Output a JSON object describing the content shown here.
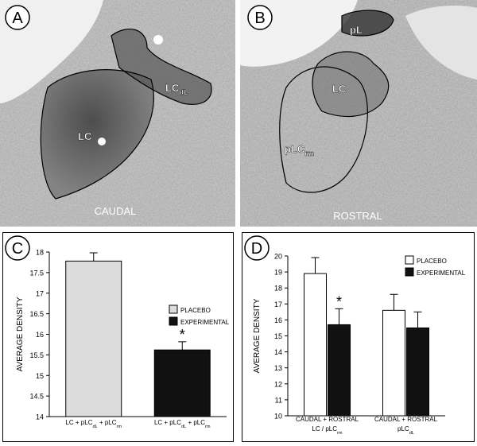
{
  "images": [
    {
      "letter": "A",
      "labels": [
        [
          "LC"
        ],
        [
          "LC",
          "dL"
        ]
      ],
      "caption": "CAUDAL"
    },
    {
      "letter": "B",
      "labels": [
        [
          "pL"
        ],
        [
          "LC"
        ],
        [
          "pLC",
          "rm"
        ]
      ],
      "caption": "ROSTRAL"
    }
  ],
  "chart_data": [
    {
      "type": "bar",
      "letter": "C",
      "ylabel": "AVERAGE DENSITY",
      "ylim": [
        14,
        18
      ],
      "yticks": [
        14,
        14.5,
        15,
        15.5,
        16,
        16.5,
        17,
        17.5,
        18
      ],
      "categories": [
        [
          [
            "LC + pLC",
            "dL",
            " + pLC",
            "rm"
          ]
        ],
        [
          [
            "LC + pLC",
            "dL",
            " + pLC",
            "rm"
          ]
        ]
      ],
      "series": [
        {
          "name": "PLACEBO",
          "color": "#dcdcdc",
          "values": [
            17.78,
            null
          ],
          "errors": [
            0.2,
            null
          ]
        },
        {
          "name": "EXPERIMENTAL",
          "color": "#111111",
          "values": [
            null,
            15.62
          ],
          "errors": [
            null,
            0.2
          ]
        }
      ],
      "significance": "*"
    },
    {
      "type": "bar",
      "letter": "D",
      "ylabel": "AVERAGE DENSITY",
      "ylim": [
        10,
        20
      ],
      "yticks": [
        10,
        11,
        12,
        13,
        14,
        15,
        16,
        17,
        18,
        19,
        20
      ],
      "categories": [
        [
          [
            "CAUDAL + ROSTRAL"
          ],
          [
            "LC / pLC",
            "rm"
          ]
        ],
        [
          [
            "CAUDAL + ROSTRAL"
          ],
          [
            "pLC",
            "dL"
          ]
        ]
      ],
      "series": [
        {
          "name": "PLACEBO",
          "color": "#ffffff",
          "values": [
            18.9,
            16.6
          ],
          "errors": [
            1.0,
            1.0
          ]
        },
        {
          "name": "EXPERIMENTAL",
          "color": "#111111",
          "values": [
            15.7,
            15.5
          ],
          "errors": [
            1.0,
            1.0
          ]
        }
      ],
      "significance": "*"
    }
  ]
}
